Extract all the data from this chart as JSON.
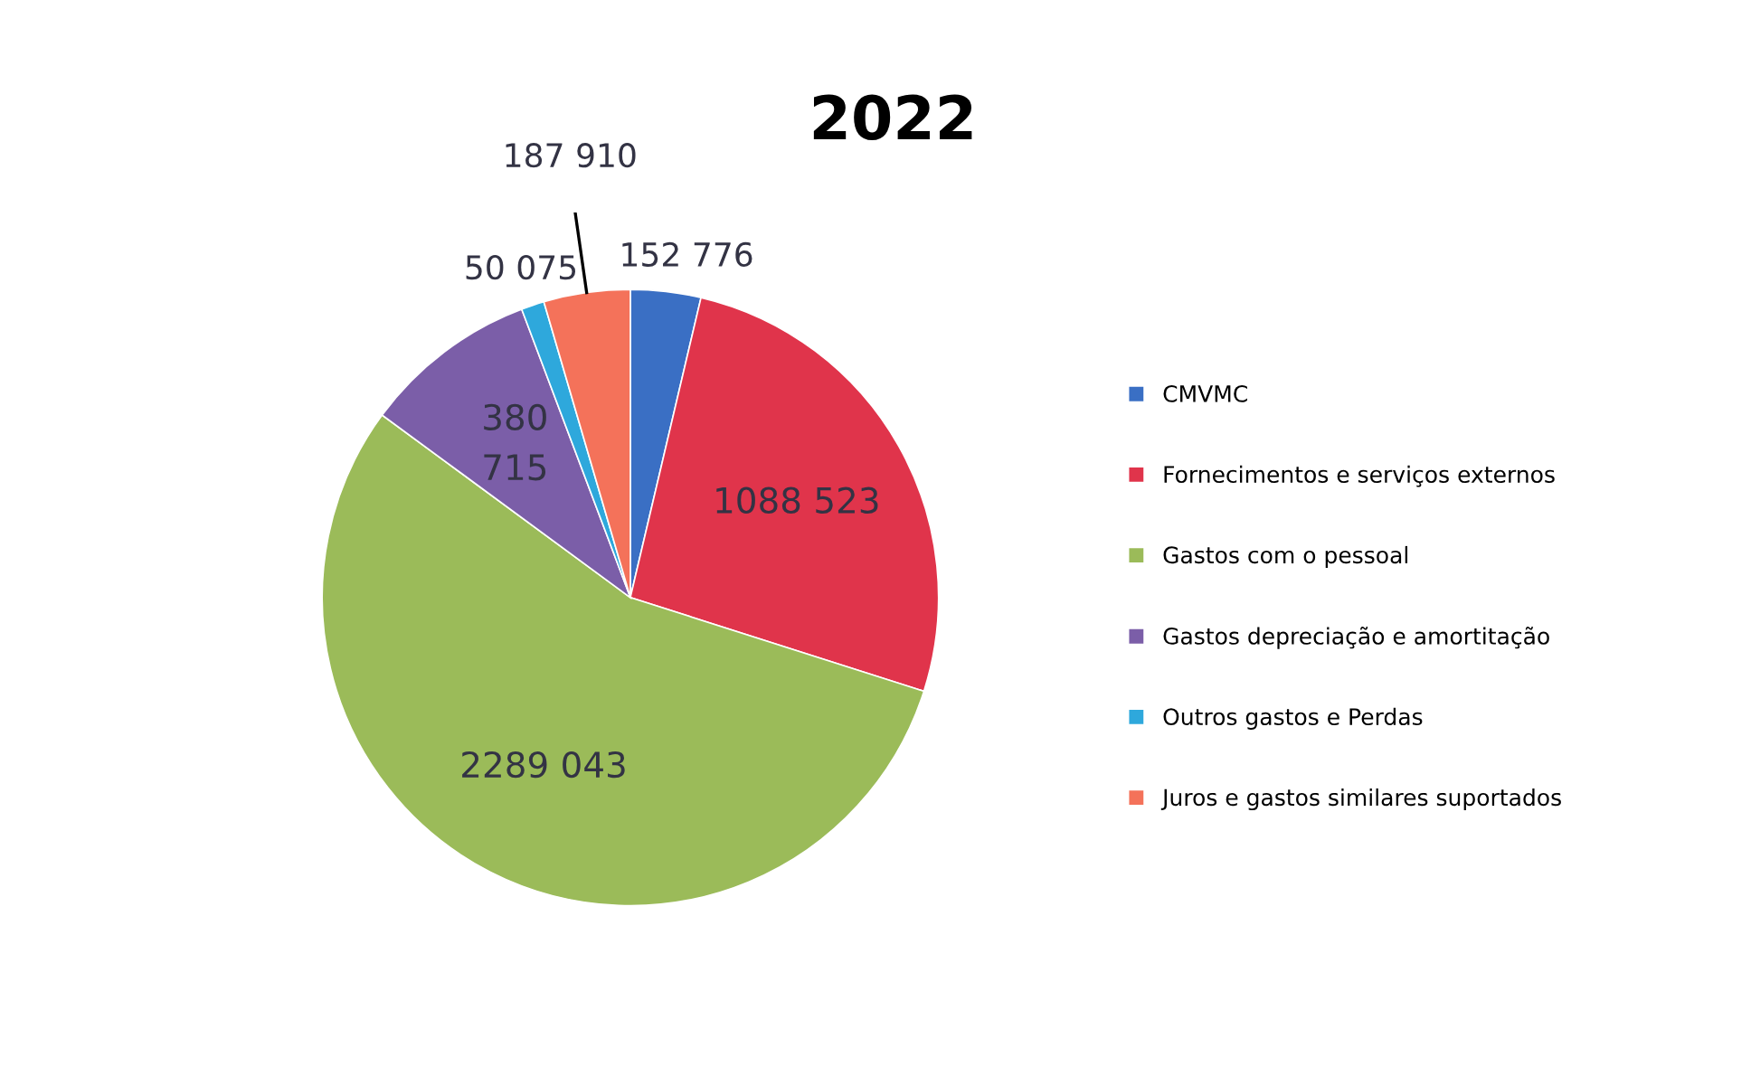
{
  "chart_data": {
    "type": "pie",
    "title": "2022",
    "categories": [
      "CMVMC",
      "Fornecimentos e serviços externos",
      "Gastos com o pessoal",
      "Gastos depreciação e amortitação",
      "Outros gastos e Perdas",
      "Juros e gastos similares suportados"
    ],
    "values": [
      152776,
      1088523,
      2289043,
      380715,
      50075,
      187910
    ],
    "colors": [
      "#3a6fc4",
      "#e0344b",
      "#9bbb59",
      "#7b5ea8",
      "#2ea8dc",
      "#f4725a"
    ],
    "value_labels": [
      "152 776",
      "1088 523",
      "2289 043",
      "380\n715",
      "50 075",
      "187 910"
    ],
    "legend": "right"
  }
}
